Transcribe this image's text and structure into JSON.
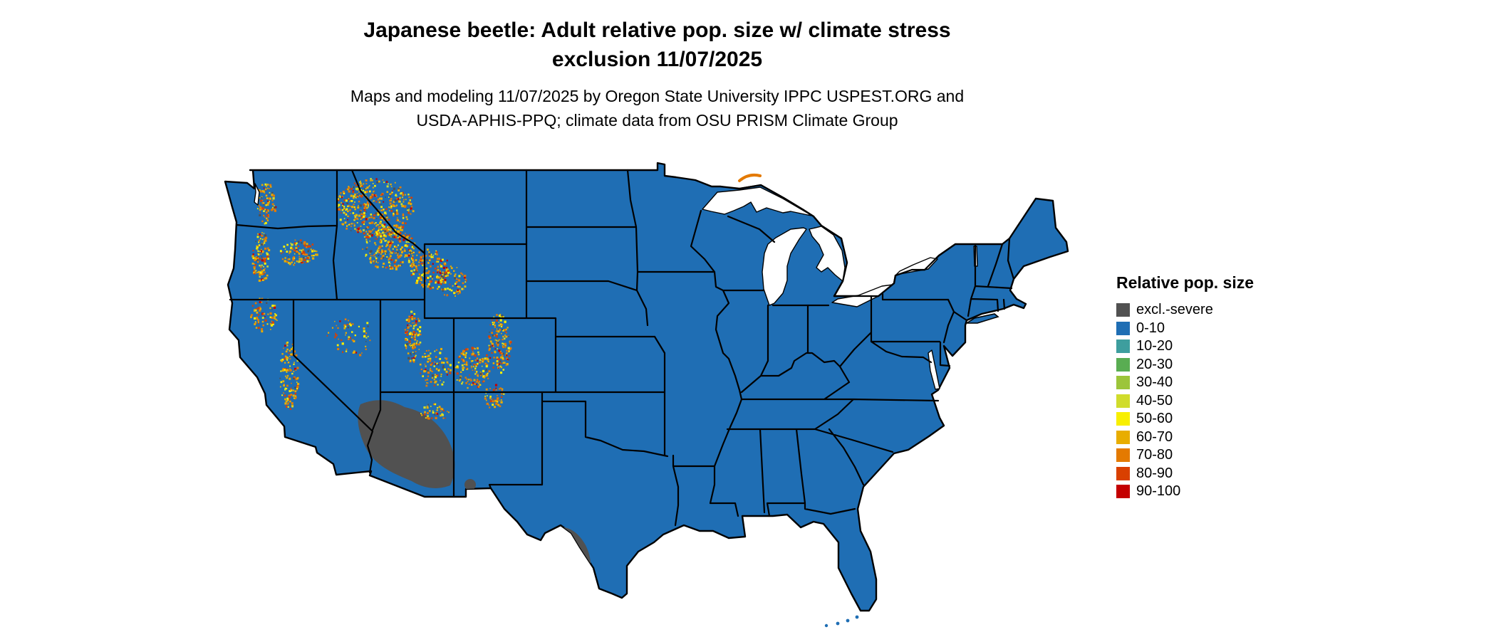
{
  "title": {
    "line1": "Japanese beetle: Adult relative pop. size w/ climate stress",
    "line2": "exclusion 11/07/2025"
  },
  "subtitle": {
    "line1": "Maps and modeling 11/07/2025 by Oregon State University IPPC USPEST.ORG and",
    "line2": "USDA-APHIS-PPQ; climate data from OSU PRISM Climate Group"
  },
  "legend": {
    "title": "Relative pop. size",
    "items": [
      {
        "label": "excl.-severe",
        "color": "#515151"
      },
      {
        "label": "0-10",
        "color": "#1f6eb4"
      },
      {
        "label": "10-20",
        "color": "#3e9e9e"
      },
      {
        "label": "20-30",
        "color": "#59ad52"
      },
      {
        "label": "30-40",
        "color": "#9cc53a"
      },
      {
        "label": "40-50",
        "color": "#d0dc2c"
      },
      {
        "label": "50-60",
        "color": "#f8ef00"
      },
      {
        "label": "60-70",
        "color": "#e8ad00"
      },
      {
        "label": "70-80",
        "color": "#e47a00"
      },
      {
        "label": "80-90",
        "color": "#d94000"
      },
      {
        "label": "90-100",
        "color": "#c40000"
      }
    ]
  },
  "map": {
    "region": "Contiguous United States",
    "land_value_class": "0-10",
    "border_color": "#000000",
    "water_color": "#ffffff"
  }
}
